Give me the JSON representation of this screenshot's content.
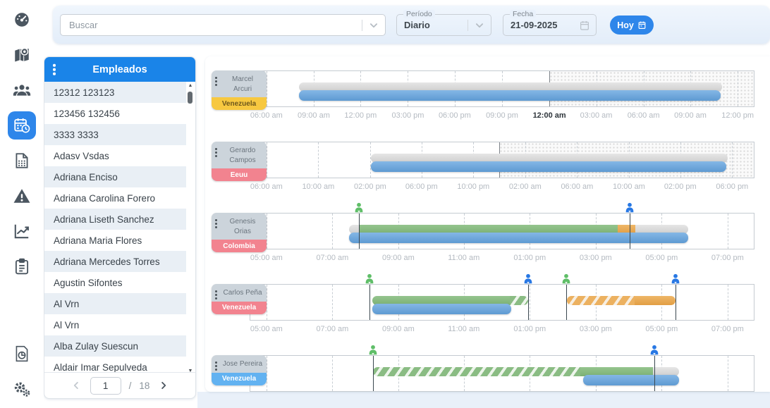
{
  "colors": {
    "accent": "#2e86ea",
    "header_blue": "#1a84e8",
    "bar_blue": "#6aa7dc",
    "bar_green": "#87bb81",
    "bar_orange": "#e9ab56",
    "bar_gray": "#d8d8d8",
    "marker_green": "#5fbe68",
    "marker_blue": "#2878e4",
    "tag_yellow": "#f7c840",
    "tag_pink": "#f2838f",
    "tag_blue": "#62b2f1"
  },
  "topbar": {
    "search": {
      "placeholder": "Buscar"
    },
    "period": {
      "label": "Período",
      "value": "Diario"
    },
    "date": {
      "label": "Fecha",
      "value": "21-09-2025"
    },
    "today_button": "Hoy"
  },
  "sidebar": {
    "items": [
      {
        "name": "dashboard",
        "icon": "dashboard-icon",
        "active": false
      },
      {
        "name": "map",
        "icon": "map-marker-icon",
        "active": false
      },
      {
        "name": "employees",
        "icon": "users-icon",
        "active": false
      },
      {
        "name": "schedule",
        "icon": "calendar-clock-icon",
        "active": true
      },
      {
        "name": "documents",
        "icon": "document-grid-icon",
        "active": false
      },
      {
        "name": "alerts",
        "icon": "warning-triangle-icon",
        "active": false
      },
      {
        "name": "statistics",
        "icon": "line-chart-icon",
        "active": false
      },
      {
        "name": "tasks",
        "icon": "clipboard-icon",
        "active": false
      },
      {
        "name": "reports",
        "icon": "report-pie-icon",
        "active": false
      },
      {
        "name": "settings",
        "icon": "gears-icon",
        "active": false
      }
    ]
  },
  "employees_panel": {
    "title": "Empleados",
    "items": [
      "12312 123123",
      "123456 132456",
      "3333 3333",
      "Adasv Vsdas",
      "Adriana Enciso",
      "Adriana Carolina Forero",
      "Adriana Liseth Sanchez",
      "Adriana Maria Flores",
      "Adriana Mercedes Torres",
      "Agustin Sifontes",
      "Al Vrn",
      "Al Vrn",
      "Alba Zulay Suescun",
      "Aldair Imar Sepulveda"
    ],
    "pagination": {
      "current_page": "1",
      "separator": "/",
      "total_pages": "18"
    }
  },
  "timeline": {
    "rows": [
      {
        "name": "Marcel Arcuri",
        "name_lines": [
          "Marcel",
          "Arcuri"
        ],
        "country": "Venezuela",
        "tag_color": "#f7c840",
        "tag_text_color": "#6d571c",
        "day_break_pct": 59.4,
        "ticks": [
          {
            "label": "06:00 am",
            "pct": 3.2
          },
          {
            "label": "09:00 am",
            "pct": 12.6
          },
          {
            "label": "12:00 pm",
            "pct": 21.9
          },
          {
            "label": "03:00 pm",
            "pct": 31.3
          },
          {
            "label": "06:00 pm",
            "pct": 40.6
          },
          {
            "label": "09:00 pm",
            "pct": 50.0
          },
          {
            "label": "12:00 am",
            "pct": 59.4,
            "bold": true
          },
          {
            "label": "03:00 am",
            "pct": 68.7
          },
          {
            "label": "06:00 am",
            "pct": 78.1
          },
          {
            "label": "09:00 am",
            "pct": 87.4
          },
          {
            "label": "12:00 pm",
            "pct": 96.8
          }
        ],
        "bars": [
          {
            "lane": "top",
            "color": "gray",
            "from": 9.6,
            "to": 93.7,
            "round": "both"
          },
          {
            "lane": "bottom",
            "color": "blue",
            "from": 9.6,
            "to": 93.4,
            "round": "both"
          }
        ],
        "markers": []
      },
      {
        "name": "Gerardo Campos",
        "name_lines": [
          "Gerardo",
          "Campos"
        ],
        "country": "Eeuu",
        "tag_color": "#f2838f",
        "tag_text_color": "#ffffff",
        "day_break_pct": 49.5,
        "ticks": [
          {
            "label": "06:00 am",
            "pct": 3.2
          },
          {
            "label": "10:00 am",
            "pct": 13.5
          },
          {
            "label": "02:00 pm",
            "pct": 23.8
          },
          {
            "label": "06:00 pm",
            "pct": 34.0
          },
          {
            "label": "10:00 pm",
            "pct": 44.3
          },
          {
            "label": "02:00 am",
            "pct": 54.6
          },
          {
            "label": "06:00 am",
            "pct": 64.9
          },
          {
            "label": "10:00 am",
            "pct": 75.2
          },
          {
            "label": "02:00 pm",
            "pct": 85.4
          },
          {
            "label": "06:00 pm",
            "pct": 95.7
          }
        ],
        "bars": [
          {
            "lane": "top",
            "color": "gray",
            "from": 23.9,
            "to": 94.8,
            "round": "both"
          },
          {
            "lane": "bottom",
            "color": "blue",
            "from": 23.9,
            "to": 94.5,
            "round": "both"
          }
        ],
        "markers": []
      },
      {
        "name": "Genesis Orias",
        "name_lines": [
          "Genesis",
          "Orias"
        ],
        "country": "Colombia",
        "tag_color": "#f2838f",
        "tag_text_color": "#ffffff",
        "day_break_pct": null,
        "ticks": [
          {
            "label": "05:00 am",
            "pct": 3.2
          },
          {
            "label": "07:00 am",
            "pct": 16.3
          },
          {
            "label": "09:00 am",
            "pct": 29.4
          },
          {
            "label": "11:00 am",
            "pct": 42.4
          },
          {
            "label": "01:00 pm",
            "pct": 55.5
          },
          {
            "label": "03:00 pm",
            "pct": 68.6
          },
          {
            "label": "05:00 pm",
            "pct": 81.7
          },
          {
            "label": "07:00 pm",
            "pct": 94.8
          }
        ],
        "bars": [
          {
            "lane": "top",
            "color": "gray",
            "from": 19.6,
            "to": 87.0,
            "round": "both"
          },
          {
            "lane": "top",
            "color": "green",
            "from": 21.5,
            "to": 73.0,
            "round": "none"
          },
          {
            "lane": "top",
            "color": "orange",
            "from": 73.0,
            "to": 76.5,
            "round": "none"
          },
          {
            "lane": "bottom",
            "color": "blue",
            "from": 19.6,
            "to": 87.0,
            "round": "both"
          }
        ],
        "markers": [
          {
            "color": "green",
            "pct": 21.5
          },
          {
            "color": "blue",
            "pct": 75.4
          }
        ]
      },
      {
        "name": "Carlos Peña",
        "name_lines": [
          "Carlos Peña"
        ],
        "country": "Venezuela",
        "tag_color": "#f2838f",
        "tag_text_color": "#ffffff",
        "day_break_pct": null,
        "ticks": [
          {
            "label": "05:00 am",
            "pct": 3.2
          },
          {
            "label": "07:00 am",
            "pct": 16.3
          },
          {
            "label": "09:00 am",
            "pct": 29.4
          },
          {
            "label": "11:00 am",
            "pct": 42.4
          },
          {
            "label": "01:00 pm",
            "pct": 55.5
          },
          {
            "label": "03:00 pm",
            "pct": 68.6
          },
          {
            "label": "05:00 pm",
            "pct": 81.7
          },
          {
            "label": "07:00 pm",
            "pct": 94.8
          }
        ],
        "bars": [
          {
            "lane": "top",
            "color": "green",
            "from": 24.2,
            "to": 51.5,
            "round": "left"
          },
          {
            "lane": "top",
            "color": "green_hatch",
            "from": 51.5,
            "to": 55.2,
            "round": "right"
          },
          {
            "lane": "top",
            "color": "orange_hatch",
            "from": 62.9,
            "to": 76.3,
            "round": "left"
          },
          {
            "lane": "top",
            "color": "orange",
            "from": 76.3,
            "to": 84.4,
            "round": "right"
          },
          {
            "lane": "bottom",
            "color": "blue",
            "from": 24.2,
            "to": 51.8,
            "round": "both"
          }
        ],
        "markers": [
          {
            "color": "green",
            "pct": 23.6
          },
          {
            "color": "blue",
            "pct": 55.2
          },
          {
            "color": "green",
            "pct": 62.7
          },
          {
            "color": "blue",
            "pct": 84.4
          }
        ]
      },
      {
        "name": "Jose Pereira",
        "name_lines": [
          "Jose Pereira"
        ],
        "country": "Venezuela",
        "tag_color": "#62b2f1",
        "tag_text_color": "#ffffff",
        "day_break_pct": null,
        "ticks": [
          {
            "label": "05:00 am",
            "pct": 3.2
          },
          {
            "label": "07:00 am",
            "pct": 16.3
          },
          {
            "label": "09:00 am",
            "pct": 29.4
          },
          {
            "label": "11:00 am",
            "pct": 42.4
          },
          {
            "label": "01:00 pm",
            "pct": 55.5
          },
          {
            "label": "03:00 pm",
            "pct": 68.6
          },
          {
            "label": "05:00 pm",
            "pct": 81.7
          },
          {
            "label": "07:00 pm",
            "pct": 94.8
          }
        ],
        "bars": [
          {
            "lane": "top",
            "color": "green_hatch",
            "from": 24.3,
            "to": 65.5,
            "round": "left"
          },
          {
            "lane": "top",
            "color": "green",
            "from": 65.5,
            "to": 80.0,
            "round": "none"
          },
          {
            "lane": "top",
            "color": "gray",
            "from": 80.0,
            "to": 85.1,
            "round": "right"
          },
          {
            "lane": "bottom",
            "color": "blue",
            "from": 66.1,
            "to": 85.1,
            "round": "both"
          }
        ],
        "markers": [
          {
            "color": "green",
            "pct": 24.3
          },
          {
            "color": "blue",
            "pct": 80.3
          }
        ]
      }
    ]
  }
}
